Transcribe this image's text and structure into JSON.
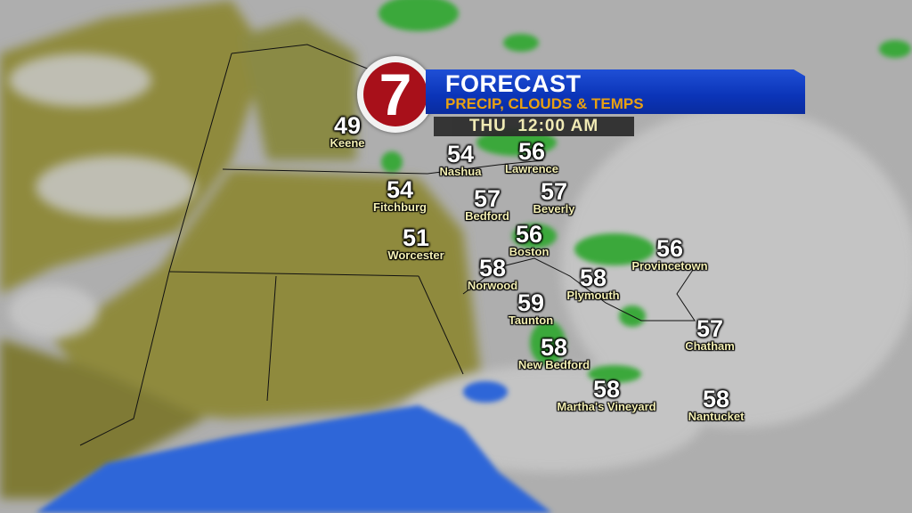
{
  "header": {
    "logo_text": "7",
    "title": "FORECAST",
    "subtitle": "PRECIP, CLOUDS & TEMPS",
    "time": "THU  12:00 AM"
  },
  "colors": {
    "banner_blue": "#0b34b8",
    "subtitle_gold": "#e8a012",
    "logo_red": "#a8101a",
    "label_yellow": "#f4f0b4",
    "water_blue": "#2f66d8",
    "rain_green": "#3aa83a"
  },
  "cities": [
    {
      "name": "Keene",
      "temp": "49"
    },
    {
      "name": "Nashua",
      "temp": "54"
    },
    {
      "name": "Lawrence",
      "temp": "56"
    },
    {
      "name": "Fitchburg",
      "temp": "54"
    },
    {
      "name": "Bedford",
      "temp": "57"
    },
    {
      "name": "Beverly",
      "temp": "57"
    },
    {
      "name": "Worcester",
      "temp": "51"
    },
    {
      "name": "Boston",
      "temp": "56"
    },
    {
      "name": "Provincetown",
      "temp": "56"
    },
    {
      "name": "Norwood",
      "temp": "58"
    },
    {
      "name": "Plymouth",
      "temp": "58"
    },
    {
      "name": "Taunton",
      "temp": "59"
    },
    {
      "name": "Chatham",
      "temp": "57"
    },
    {
      "name": "New Bedford",
      "temp": "58"
    },
    {
      "name": "Martha's Vineyard",
      "temp": "58"
    },
    {
      "name": "Nantucket",
      "temp": "58"
    }
  ]
}
